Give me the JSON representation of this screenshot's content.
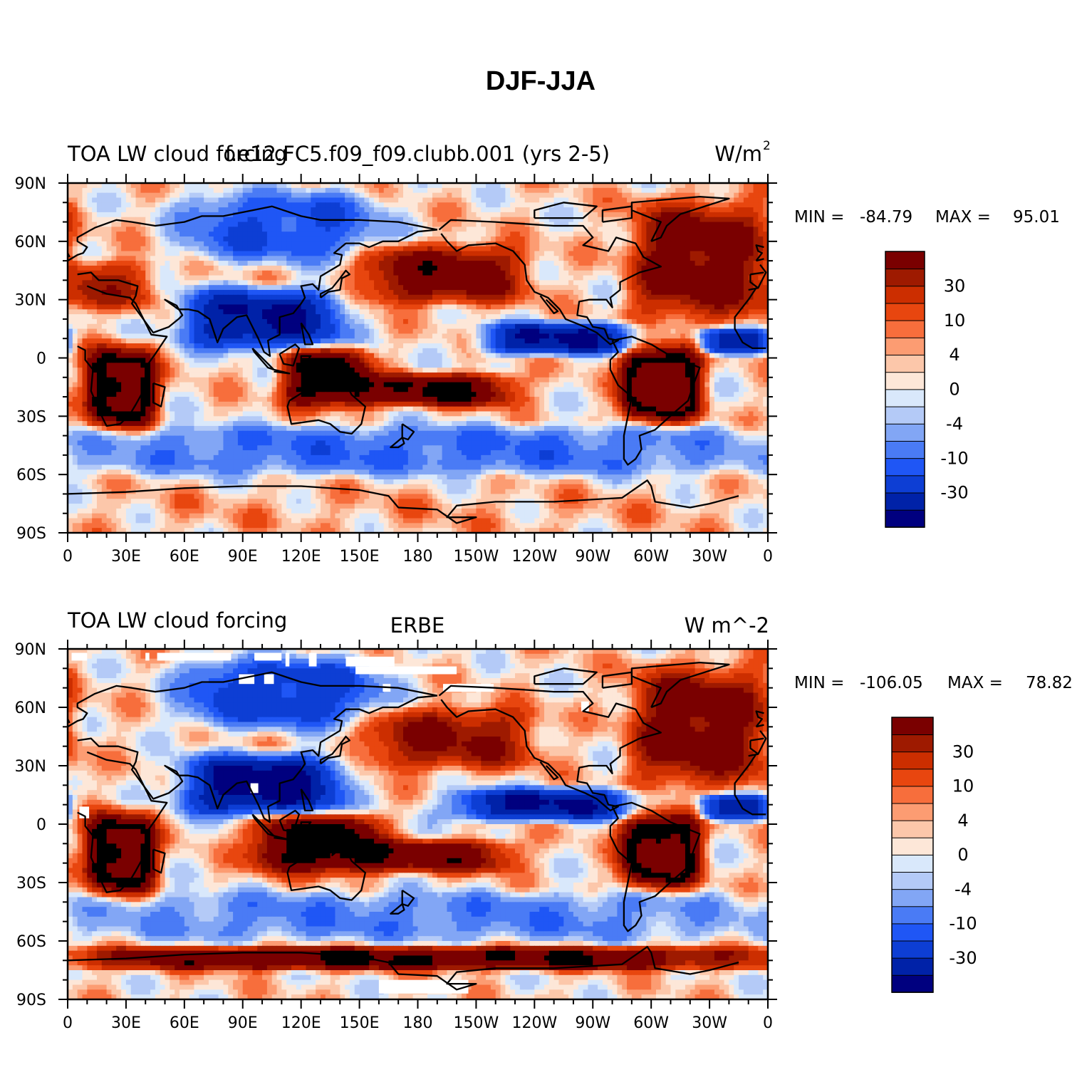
{
  "main_title": "DJF-JJA",
  "panels": [
    {
      "id": "model",
      "left_title": "TOA LW cloud forcing",
      "center_title": "f.e12.FC5.f09_f09.clubb.001 (yrs 2-5)",
      "units_text": "W/m",
      "units_sup": "2",
      "min_label": "MIN =",
      "min_value": "-84.79",
      "max_label": "MAX =",
      "max_value": "95.01",
      "missing_areas": []
    },
    {
      "id": "obs",
      "left_title": "TOA LW cloud forcing",
      "center_title": "ERBE",
      "units_text": "W m^-2",
      "units_sup": "",
      "min_label": "MIN =",
      "min_value": "-106.05",
      "max_label": "MAX =",
      "max_value": "78.82",
      "missing_areas": [
        {
          "lon": [
            2,
            10
          ],
          "lat": [
            84,
            88
          ]
        },
        {
          "lon": [
            40,
            42
          ],
          "lat": [
            84,
            88
          ]
        },
        {
          "lon": [
            46,
            84
          ],
          "lat": [
            84,
            88
          ]
        },
        {
          "lon": [
            96,
            110
          ],
          "lat": [
            84,
            88
          ]
        },
        {
          "lon": [
            112,
            114
          ],
          "lat": [
            81,
            88
          ]
        },
        {
          "lon": [
            124,
            128
          ],
          "lat": [
            81,
            88
          ]
        },
        {
          "lon": [
            143,
            168
          ],
          "lat": [
            81,
            86
          ]
        },
        {
          "lon": [
            148,
            200
          ],
          "lat": [
            77,
            81
          ]
        },
        {
          "lon": [
            88,
            96
          ],
          "lat": [
            72,
            77
          ]
        },
        {
          "lon": [
            101,
            106
          ],
          "lat": [
            72,
            77
          ]
        },
        {
          "lon": [
            162,
            166
          ],
          "lat": [
            68,
            72
          ]
        },
        {
          "lon": [
            193,
            219
          ],
          "lat": [
            68,
            72
          ]
        },
        {
          "lon": [
            264,
            268
          ],
          "lat": [
            58,
            63
          ]
        },
        {
          "lon": [
            94,
            98
          ],
          "lat": [
            16,
            21
          ]
        },
        {
          "lon": [
            6,
            11
          ],
          "lat": [
            3,
            9
          ]
        },
        {
          "lon": [
            160,
            206
          ],
          "lat": [
            -87,
            -80
          ]
        }
      ]
    }
  ],
  "x_ticks": [
    "0",
    "30E",
    "60E",
    "90E",
    "120E",
    "150E",
    "180",
    "150W",
    "120W",
    "90W",
    "60W",
    "30W",
    "0"
  ],
  "y_ticks": [
    "90N",
    "60N",
    "30N",
    "0",
    "30S",
    "60S",
    "90S"
  ],
  "colorbar": {
    "labels": [
      "30",
      "10",
      "4",
      "0",
      "-4",
      "-10",
      "-30"
    ],
    "colors": [
      "#00007f",
      "#0022a8",
      "#0d3ed4",
      "#1f56f5",
      "#4a7bf5",
      "#82a6f5",
      "#b4caf7",
      "#d9e8fb",
      "#fde7d8",
      "#fcc7aa",
      "#fc9c72",
      "#f76e3c",
      "#e8460f",
      "#cc2e00",
      "#9e1a00",
      "#7a0000"
    ]
  },
  "chart_data": {
    "type": "map",
    "projection": "cylindrical equidistant, centered on 180",
    "title": "DJF-JJA",
    "variable": "TOA LW cloud forcing",
    "lon_range": [
      0,
      360
    ],
    "lat_range": [
      -90,
      90
    ],
    "contour_levels": [
      -40,
      -30,
      -20,
      -15,
      -10,
      -6,
      -4,
      -2,
      0,
      2,
      4,
      6,
      10,
      15,
      20,
      30,
      40
    ],
    "panels": [
      {
        "name": "f.e12.FC5.f09_f09.clubb.001 (yrs 2-5)",
        "units": "W/m2",
        "min": -84.79,
        "max": 95.01,
        "features": [
          {
            "desc": "southern Africa",
            "lon": [
              10,
              45
            ],
            "lat": [
              -35,
              5
            ],
            "value": 45
          },
          {
            "desc": "South America",
            "lon": [
              285,
              325
            ],
            "lat": [
              -32,
              5
            ],
            "value": 50
          },
          {
            "desc": "maritime continent / Australia",
            "lon": [
              110,
              155
            ],
            "lat": [
              -25,
              5
            ],
            "value": 35
          },
          {
            "desc": "SPCZ",
            "lon": [
              150,
              230
            ],
            "lat": [
              -25,
              -8
            ],
            "value": 30
          },
          {
            "desc": "North Pacific storm track",
            "lon": [
              150,
              235
            ],
            "lat": [
              28,
              58
            ],
            "value": 25
          },
          {
            "desc": "North Atlantic storm track",
            "lon": [
              290,
              360
            ],
            "lat": [
              20,
              80
            ],
            "value": 25
          },
          {
            "desc": "Europe / Mediterranean",
            "lon": [
              0,
              45
            ],
            "lat": [
              25,
              50
            ],
            "value": 15
          },
          {
            "desc": "Asian monsoon",
            "lon": [
              60,
              140
            ],
            "lat": [
              5,
              35
            ],
            "value": -40
          },
          {
            "desc": "NE Pacific ITCZ",
            "lon": [
              215,
              290
            ],
            "lat": [
              2,
              18
            ],
            "value": -40
          },
          {
            "desc": "Atlantic ITCZ",
            "lon": [
              325,
              360
            ],
            "lat": [
              2,
              15
            ],
            "value": -35
          },
          {
            "desc": "Siberia / Arctic",
            "lon": [
              60,
              160
            ],
            "lat": [
              50,
              85
            ],
            "value": -20
          },
          {
            "desc": "Southern Ocean",
            "lon": [
              0,
              360
            ],
            "lat": [
              -60,
              -35
            ],
            "value": -15
          },
          {
            "desc": "Antarctica",
            "lon": [
              0,
              360
            ],
            "lat": [
              -90,
              -68
            ],
            "value": 2
          }
        ]
      },
      {
        "name": "ERBE",
        "units": "W m^-2",
        "min": -106.05,
        "max": 78.82,
        "features": [
          {
            "desc": "southern Africa",
            "lon": [
              10,
              45
            ],
            "lat": [
              -35,
              5
            ],
            "value": 45
          },
          {
            "desc": "South America",
            "lon": [
              285,
              325
            ],
            "lat": [
              -32,
              5
            ],
            "value": 45
          },
          {
            "desc": "maritime continent / Australia",
            "lon": [
              95,
              160
            ],
            "lat": [
              -25,
              5
            ],
            "value": 35
          },
          {
            "desc": "SPCZ",
            "lon": [
              150,
              230
            ],
            "lat": [
              -25,
              -8
            ],
            "value": 25
          },
          {
            "desc": "North Pacific",
            "lon": [
              150,
              240
            ],
            "lat": [
              28,
              60
            ],
            "value": 20
          },
          {
            "desc": "North Atlantic",
            "lon": [
              290,
              360
            ],
            "lat": [
              20,
              80
            ],
            "value": 25
          },
          {
            "desc": "Asian monsoon",
            "lon": [
              60,
              140
            ],
            "lat": [
              5,
              35
            ],
            "value": -45
          },
          {
            "desc": "NE Pacific ITCZ",
            "lon": [
              200,
              290
            ],
            "lat": [
              2,
              18
            ],
            "value": -40
          },
          {
            "desc": "Atlantic ITCZ",
            "lon": [
              325,
              360
            ],
            "lat": [
              2,
              15
            ],
            "value": -35
          },
          {
            "desc": "Siberia / Arctic",
            "lon": [
              60,
              160
            ],
            "lat": [
              50,
              85
            ],
            "value": -25
          },
          {
            "desc": "Southern Ocean",
            "lon": [
              0,
              360
            ],
            "lat": [
              -60,
              -35
            ],
            "value": -12
          },
          {
            "desc": "Antarctic coast band",
            "lon": [
              0,
              360
            ],
            "lat": [
              -75,
              -63
            ],
            "value": 30
          }
        ]
      }
    ]
  }
}
